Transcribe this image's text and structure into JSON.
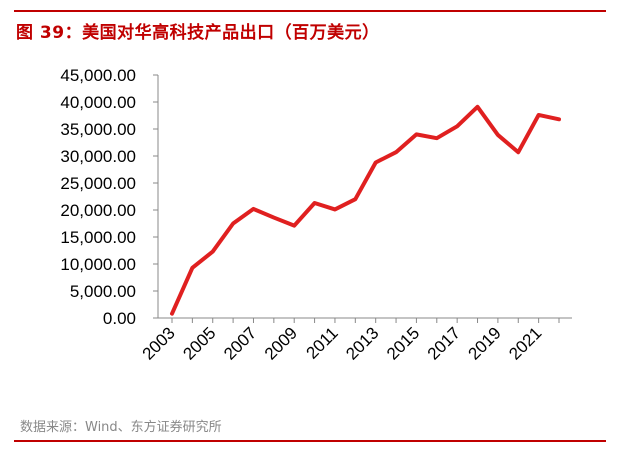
{
  "figure": {
    "title": "图 39：美国对华高科技产品出口（百万美元）",
    "source": "数据来源：Wind、东方证券研究所",
    "accent_color": "#c00000",
    "line_color": "#e02020"
  },
  "chart_data": {
    "type": "line",
    "title": "",
    "xlabel": "",
    "ylabel": "",
    "x": [
      2003,
      2004,
      2005,
      2006,
      2007,
      2008,
      2009,
      2010,
      2011,
      2012,
      2013,
      2014,
      2015,
      2016,
      2017,
      2018,
      2019,
      2020,
      2021,
      2022
    ],
    "x_tick_labels": [
      "2003",
      "2005",
      "2007",
      "2009",
      "2011",
      "2013",
      "2015",
      "2017",
      "2019",
      "2021"
    ],
    "y_tick_labels": [
      "0.00",
      "5,000.00",
      "10,000.00",
      "15,000.00",
      "20,000.00",
      "25,000.00",
      "30,000.00",
      "35,000.00",
      "40,000.00",
      "45,000.00"
    ],
    "ylim": [
      0,
      45000
    ],
    "series": [
      {
        "values": [
          800,
          9300,
          12300,
          17500,
          20200,
          18600,
          17100,
          21300,
          20100,
          22000,
          28800,
          30700,
          34000,
          33300,
          35500,
          39100,
          33900,
          30700,
          37600,
          36800
        ]
      }
    ],
    "grid": false,
    "legend": "none"
  }
}
